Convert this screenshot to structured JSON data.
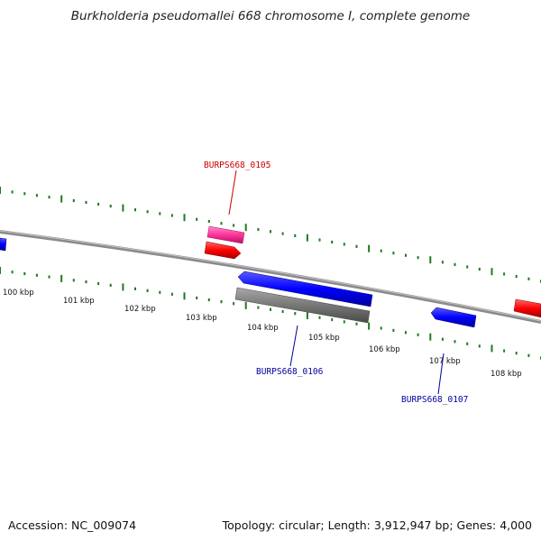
{
  "title": "Burkholderia pseudomallei 668 chromosome I, complete genome",
  "footer": {
    "accession": "Accession: NC_009074",
    "summary": "Topology: circular; Length: 3,912,947 bp; Genes: 4,000"
  },
  "colors": {
    "backbone": "#8a8a8a",
    "ticks": "#1f7a1f",
    "gene_red": "#ff0000",
    "gene_pink": "#ff3399",
    "gene_blue": "#0000ff",
    "gene_gray": "#777777",
    "label_red": "#cc0000",
    "label_blue": "#000099"
  },
  "scale": {
    "unit": "kbp",
    "ticks": [
      {
        "kbp": 100,
        "label": "100 kbp"
      },
      {
        "kbp": 101,
        "label": "101 kbp"
      },
      {
        "kbp": 102,
        "label": "102 kbp"
      },
      {
        "kbp": 103,
        "label": "103 kbp"
      },
      {
        "kbp": 104,
        "label": "104 kbp"
      },
      {
        "kbp": 105,
        "label": "105 kbp"
      },
      {
        "kbp": 106,
        "label": "106 kbp"
      },
      {
        "kbp": 107,
        "label": "107 kbp"
      },
      {
        "kbp": 108,
        "label": "108 kbp"
      }
    ]
  },
  "gene_labels": [
    {
      "name": "BURPS668_0105",
      "color": "#cc0000"
    },
    {
      "name": "BURPS668_0106",
      "color": "#000099"
    },
    {
      "name": "BURPS668_0107",
      "color": "#000099"
    }
  ]
}
